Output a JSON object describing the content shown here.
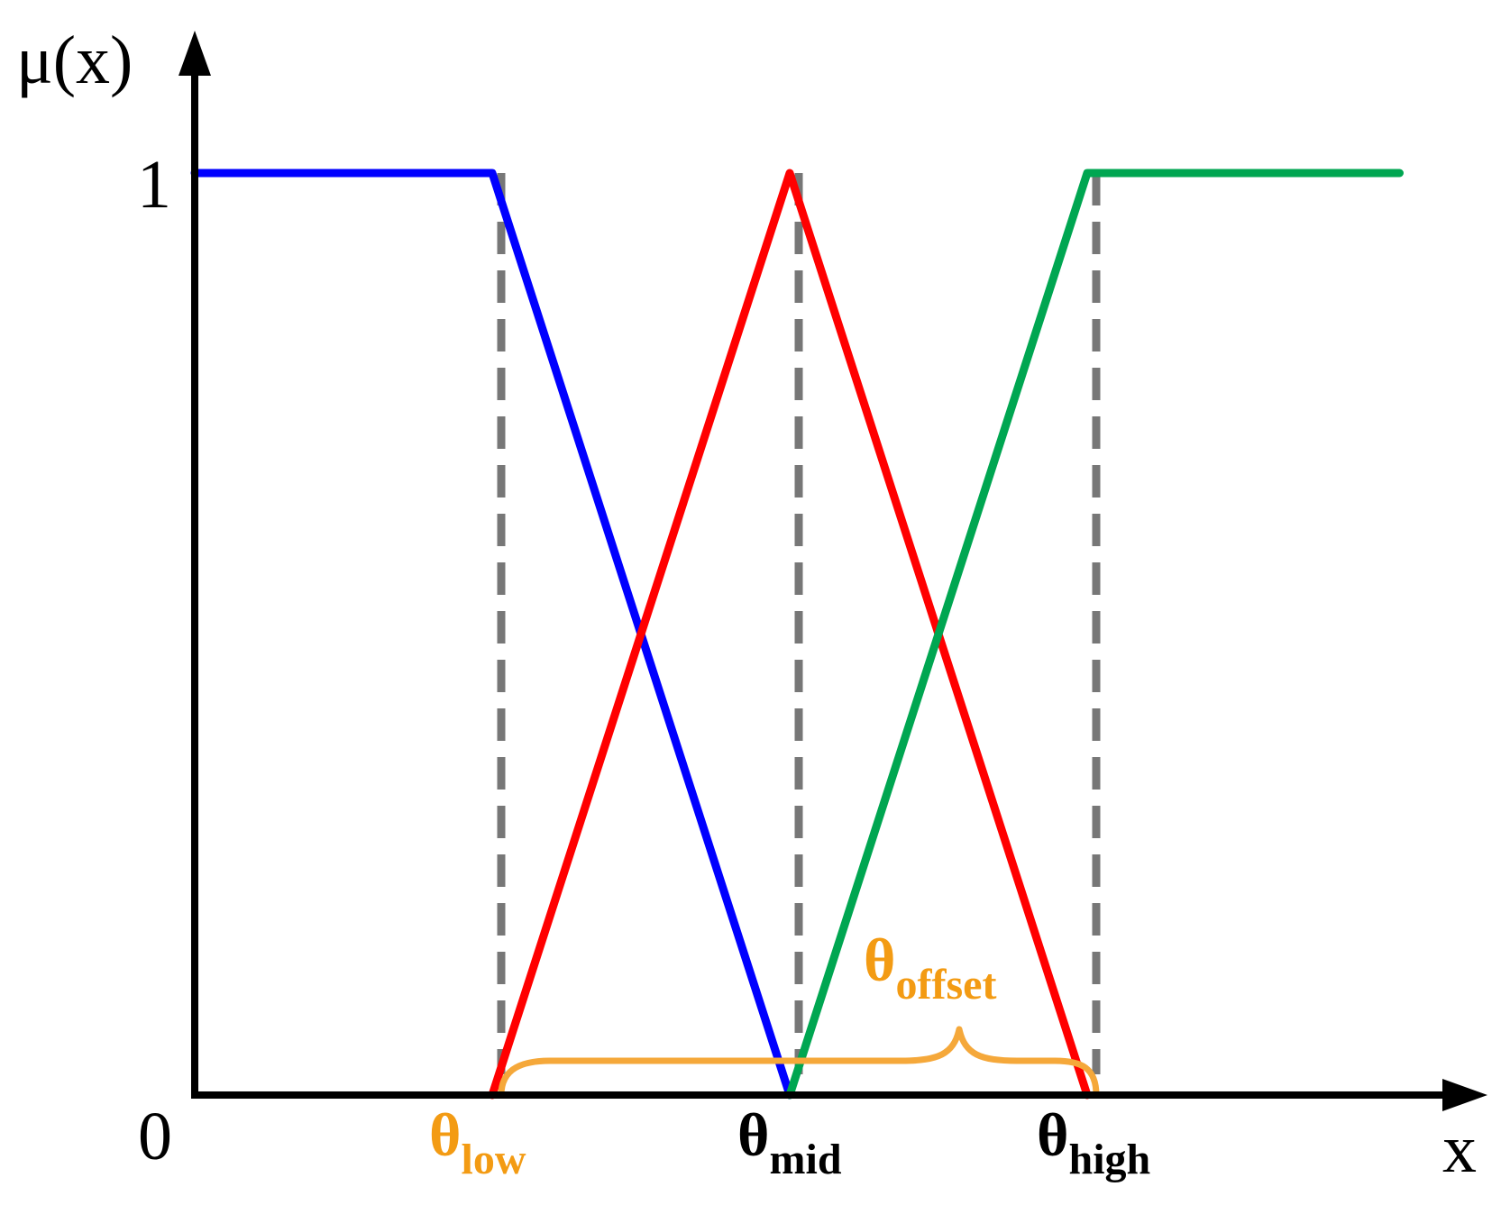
{
  "axis": {
    "y_label": "μ(x)",
    "x_label": "x",
    "y_tick_one": "1",
    "origin_label": "0"
  },
  "thresholds": {
    "low": {
      "symbol": "θ",
      "subscript": "low",
      "color": "#f39b13"
    },
    "mid": {
      "symbol": "θ",
      "subscript": "mid",
      "color": "#000000"
    },
    "high": {
      "symbol": "θ",
      "subscript": "high",
      "color": "#000000"
    }
  },
  "offset_label": {
    "symbol": "θ",
    "subscript": "offset",
    "color": "#f39b13"
  },
  "membership_functions": [
    {
      "id": "low",
      "color": "#0000ff",
      "points": [
        [
          0,
          1
        ],
        [
          1,
          1
        ],
        [
          2,
          0
        ]
      ]
    },
    {
      "id": "mid",
      "color": "#ff0000",
      "points": [
        [
          1,
          0
        ],
        [
          2,
          1
        ],
        [
          3,
          0
        ]
      ]
    },
    {
      "id": "high",
      "color": "#00a651",
      "points": [
        [
          2,
          0
        ],
        [
          3,
          1
        ],
        [
          4.05,
          1
        ]
      ]
    }
  ],
  "colors": {
    "axis": "#000000",
    "guides": "#777777",
    "brace": "#f5a83a"
  }
}
